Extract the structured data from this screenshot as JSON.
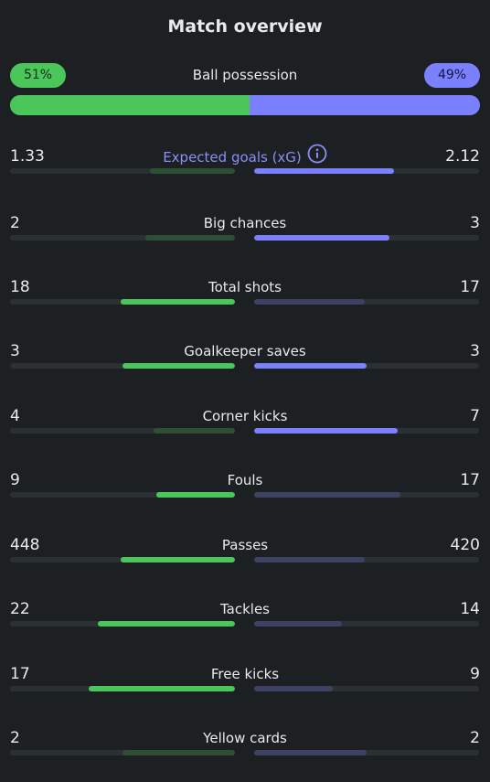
{
  "header": {
    "title": "Match overview"
  },
  "colors": {
    "home_strong": "#4bc65a",
    "home_weak": "#2f4f35",
    "away_strong": "#7b80ff",
    "away_weak": "#3d4262",
    "track": "#2b3033"
  },
  "possession": {
    "label": "Ball possession",
    "home_text": "51%",
    "away_text": "49%",
    "home_percent": 51,
    "away_percent": 49
  },
  "stats": [
    {
      "label": "Expected goals (xG)",
      "home": "1.33",
      "away": "2.12",
      "home_fill": 0.38,
      "away_fill": 0.62,
      "leader": "away",
      "has_info": true
    },
    {
      "label": "Big chances",
      "home": "2",
      "away": "3",
      "home_fill": 0.4,
      "away_fill": 0.6,
      "leader": "away"
    },
    {
      "label": "Total shots",
      "home": "18",
      "away": "17",
      "home_fill": 0.51,
      "away_fill": 0.49,
      "leader": "home"
    },
    {
      "label": "Goalkeeper saves",
      "home": "3",
      "away": "3",
      "home_fill": 0.5,
      "away_fill": 0.5,
      "leader": "both"
    },
    {
      "label": "Corner kicks",
      "home": "4",
      "away": "7",
      "home_fill": 0.36,
      "away_fill": 0.64,
      "leader": "away"
    },
    {
      "label": "Fouls",
      "home": "9",
      "away": "17",
      "home_fill": 0.35,
      "away_fill": 0.65,
      "leader": "home"
    },
    {
      "label": "Passes",
      "home": "448",
      "away": "420",
      "home_fill": 0.51,
      "away_fill": 0.49,
      "leader": "home"
    },
    {
      "label": "Tackles",
      "home": "22",
      "away": "14",
      "home_fill": 0.61,
      "away_fill": 0.39,
      "leader": "home"
    },
    {
      "label": "Free kicks",
      "home": "17",
      "away": "9",
      "home_fill": 0.65,
      "away_fill": 0.35,
      "leader": "home"
    },
    {
      "label": "Yellow cards",
      "home": "2",
      "away": "2",
      "home_fill": 0.5,
      "away_fill": 0.5,
      "leader": "none"
    }
  ]
}
